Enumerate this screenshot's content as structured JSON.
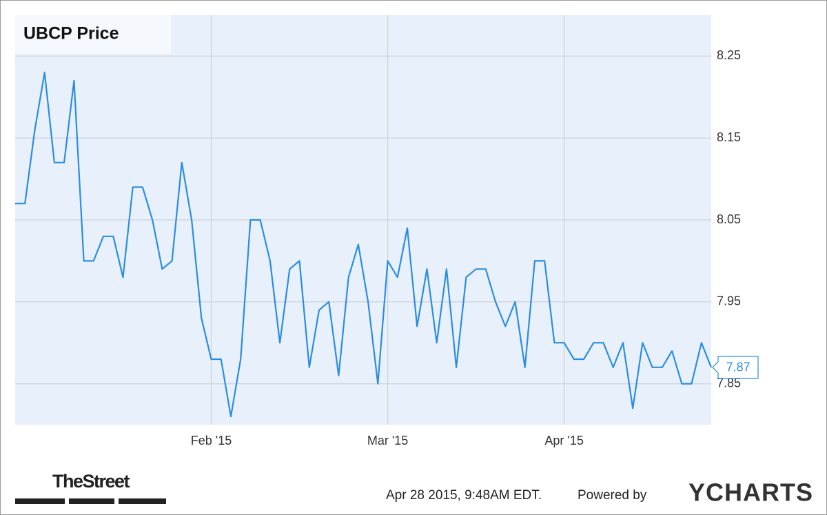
{
  "chart_data": {
    "type": "line",
    "title": "UBCP Price",
    "categories": [
      null,
      null,
      null,
      null,
      null,
      null,
      null,
      null,
      null,
      null,
      null,
      null,
      null,
      null,
      null,
      null,
      null,
      null,
      null,
      null,
      "Feb '15",
      null,
      null,
      null,
      null,
      null,
      null,
      null,
      null,
      null,
      null,
      null,
      null,
      null,
      null,
      null,
      null,
      null,
      "Mar '15",
      null,
      null,
      null,
      null,
      null,
      null,
      null,
      null,
      null,
      null,
      null,
      null,
      null,
      null,
      null,
      null,
      null,
      "Apr '15",
      null,
      null,
      null,
      null,
      null,
      null,
      null,
      null,
      null,
      null,
      null,
      null,
      null,
      null,
      null
    ],
    "series": [
      {
        "name": "UBCP Price",
        "color": "#2b8de0",
        "values": [
          8.07,
          8.07,
          8.16,
          8.23,
          8.12,
          8.12,
          8.22,
          8.0,
          8.0,
          8.03,
          8.03,
          7.98,
          8.09,
          8.09,
          8.05,
          7.99,
          8.0,
          8.12,
          8.05,
          7.93,
          7.88,
          7.88,
          7.81,
          7.88,
          8.05,
          8.05,
          8.0,
          7.9,
          7.99,
          8.0,
          7.87,
          7.94,
          7.95,
          7.86,
          7.98,
          8.02,
          7.95,
          7.85,
          8.0,
          7.98,
          8.04,
          7.92,
          7.99,
          7.9,
          7.99,
          7.87,
          7.98,
          7.99,
          7.99,
          7.95,
          7.92,
          7.95,
          7.87,
          8.0,
          8.0,
          7.9,
          7.9,
          7.88,
          7.88,
          7.9,
          7.9,
          7.87,
          7.9,
          7.82,
          7.9,
          7.87,
          7.87,
          7.89,
          7.85,
          7.85,
          7.9,
          7.87
        ]
      }
    ],
    "ylim": [
      7.8,
      8.3
    ],
    "yticks": [
      7.85,
      7.95,
      8.05,
      8.15,
      8.25
    ],
    "grid": true,
    "last_value_callout": true
  },
  "footer": {
    "source_logo": "TheStreet",
    "timestamp": "Apr 28 2015, 9:48AM EDT.",
    "powered_by": "Powered by",
    "brand": "YCHARTS"
  }
}
